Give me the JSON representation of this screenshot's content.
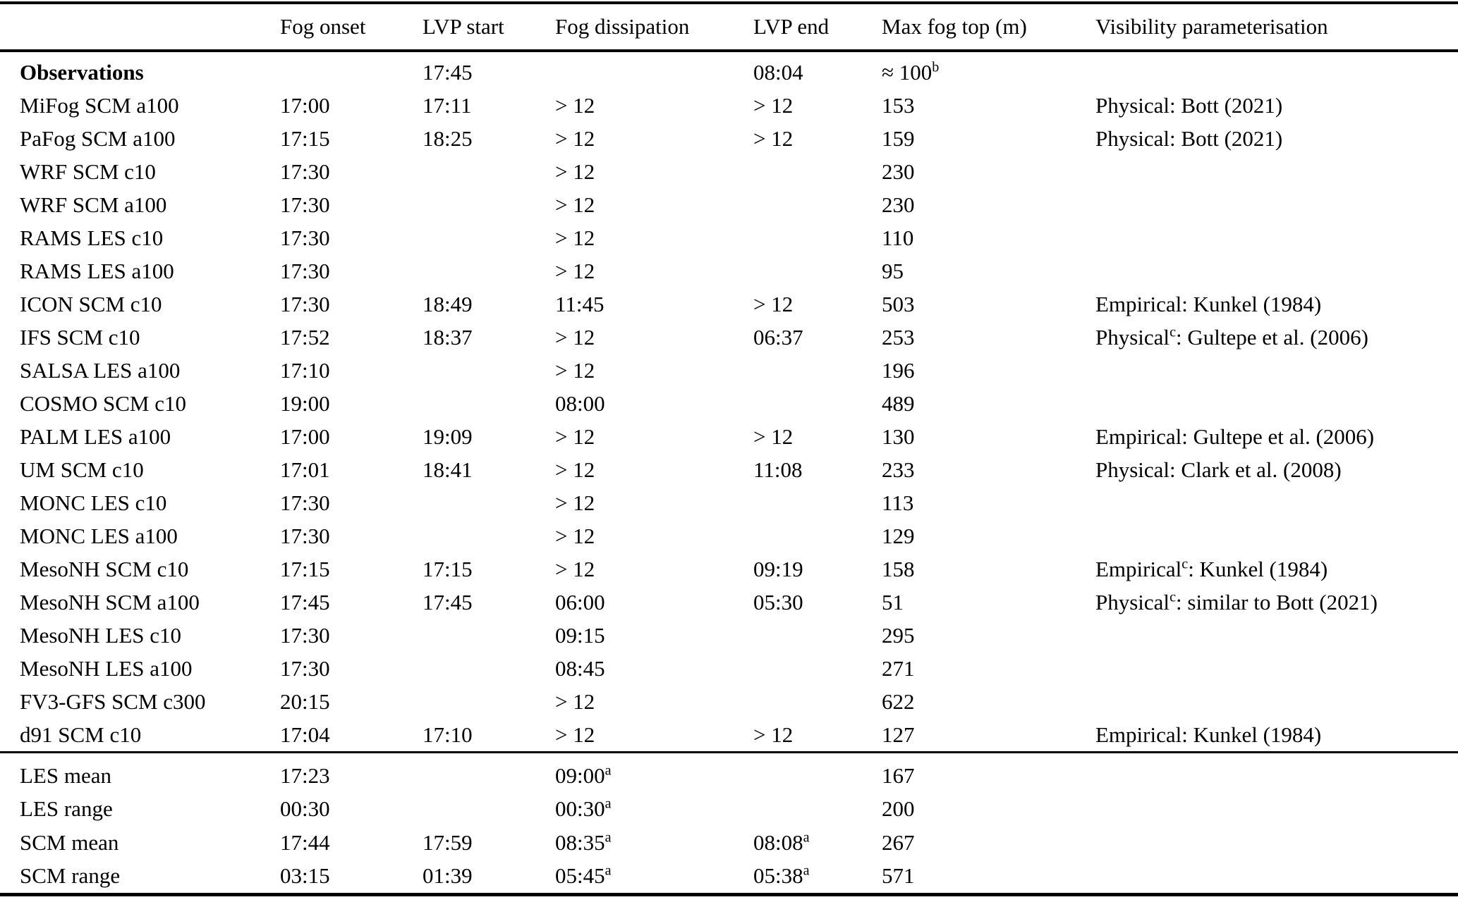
{
  "page": {
    "background_color": "#ffffff",
    "text_color": "#000000"
  },
  "table": {
    "headers": [
      "",
      "Fog onset",
      "LVP start",
      "Fog dissipation",
      "LVP end",
      "Max fog top (m)",
      "Visibility parameterisation"
    ],
    "column_keys": [
      "model",
      "fog-onset",
      "lvp-start",
      "fog-dissipation",
      "lvp-end",
      "max-fog-top",
      "visibility"
    ],
    "model_rows": [
      {
        "label": "Observations",
        "bold": true,
        "cells": [
          "",
          "17:45",
          "",
          "08:04",
          "≈ 100^b",
          ""
        ]
      },
      {
        "label": "MiFog SCM a100",
        "cells": [
          "17:00",
          "17:11",
          "> 12",
          "> 12",
          "153",
          "Physical: Bott (2021)"
        ]
      },
      {
        "label": "PaFog SCM a100",
        "cells": [
          "17:15",
          "18:25",
          "> 12",
          "> 12",
          "159",
          "Physical: Bott (2021)"
        ]
      },
      {
        "label": "WRF SCM c10",
        "cells": [
          "17:30",
          "",
          "> 12",
          "",
          "230",
          ""
        ]
      },
      {
        "label": "WRF SCM a100",
        "cells": [
          "17:30",
          "",
          "> 12",
          "",
          "230",
          ""
        ]
      },
      {
        "label": "RAMS LES c10",
        "cells": [
          "17:30",
          "",
          "> 12",
          "",
          "110",
          ""
        ]
      },
      {
        "label": "RAMS LES a100",
        "cells": [
          "17:30",
          "",
          "> 12",
          "",
          "95",
          ""
        ]
      },
      {
        "label": "ICON SCM c10",
        "cells": [
          "17:30",
          "18:49",
          "11:45",
          "> 12",
          "503",
          "Empirical: Kunkel (1984)"
        ]
      },
      {
        "label": "IFS SCM c10",
        "cells": [
          "17:52",
          "18:37",
          "> 12",
          "06:37",
          "253",
          "Physical^c: Gultepe et al. (2006)"
        ]
      },
      {
        "label": "SALSA LES a100",
        "cells": [
          "17:10",
          "",
          "> 12",
          "",
          "196",
          ""
        ]
      },
      {
        "label": "COSMO SCM c10",
        "cells": [
          "19:00",
          "",
          "08:00",
          "",
          "489",
          ""
        ]
      },
      {
        "label": "PALM LES a100",
        "cells": [
          "17:00",
          "19:09",
          "> 12",
          "> 12",
          "130",
          "Empirical: Gultepe et al. (2006)"
        ]
      },
      {
        "label": "UM SCM c10",
        "cells": [
          "17:01",
          "18:41",
          "> 12",
          "11:08",
          "233",
          "Physical: Clark et al. (2008)"
        ]
      },
      {
        "label": "MONC LES c10",
        "cells": [
          "17:30",
          "",
          "> 12",
          "",
          "113",
          ""
        ]
      },
      {
        "label": "MONC LES a100",
        "cells": [
          "17:30",
          "",
          "> 12",
          "",
          "129",
          ""
        ]
      },
      {
        "label": "MesoNH SCM c10",
        "cells": [
          "17:15",
          "17:15",
          "> 12",
          "09:19",
          "158",
          "Empirical^c: Kunkel (1984)"
        ]
      },
      {
        "label": "MesoNH SCM a100",
        "cells": [
          "17:45",
          "17:45",
          "06:00",
          "05:30",
          "51",
          "Physical^c: similar to Bott (2021)"
        ]
      },
      {
        "label": "MesoNH LES c10",
        "cells": [
          "17:30",
          "",
          "09:15",
          "",
          "295",
          ""
        ]
      },
      {
        "label": "MesoNH LES a100",
        "cells": [
          "17:30",
          "",
          "08:45",
          "",
          "271",
          ""
        ]
      },
      {
        "label": "FV3-GFS SCM c300",
        "cells": [
          "20:15",
          "",
          "> 12",
          "",
          "622",
          ""
        ]
      },
      {
        "label": "d91 SCM c10",
        "cells": [
          "17:04",
          "17:10",
          "> 12",
          "> 12",
          "127",
          "Empirical: Kunkel (1984)"
        ]
      }
    ],
    "summary_rows": [
      {
        "label": "LES mean",
        "cells": [
          "17:23",
          "",
          "09:00^a",
          "",
          "167",
          ""
        ]
      },
      {
        "label": "LES range",
        "cells": [
          "00:30",
          "",
          "00:30^a",
          "",
          "200",
          ""
        ]
      },
      {
        "label": "SCM mean",
        "cells": [
          "17:44",
          "17:59",
          "08:35^a",
          "08:08^a",
          "267",
          ""
        ]
      },
      {
        "label": "SCM range",
        "cells": [
          "03:15",
          "01:39",
          "05:45^a",
          "05:38^a",
          "571",
          ""
        ]
      }
    ]
  }
}
